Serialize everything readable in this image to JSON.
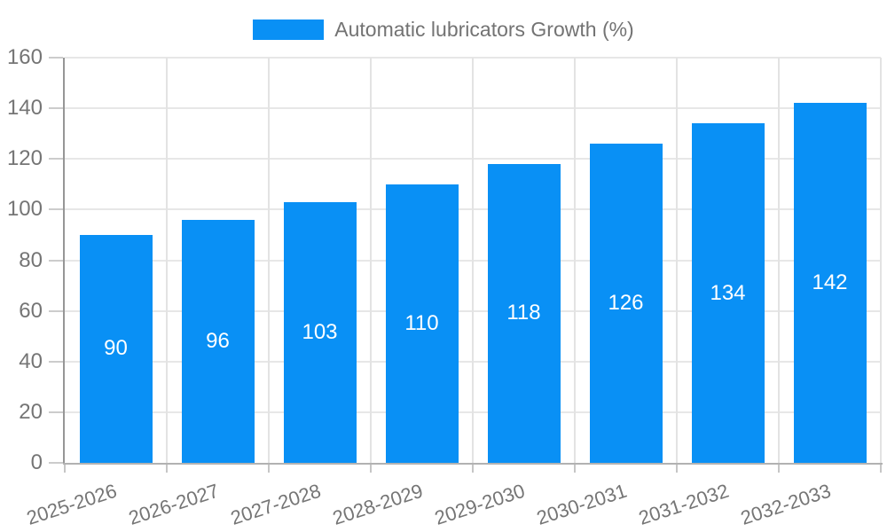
{
  "legend": {
    "label": "Automatic lubricators Growth (%)"
  },
  "chart_data": {
    "type": "bar",
    "title": "",
    "xlabel": "",
    "ylabel": "",
    "series_name": "Automatic lubricators Growth (%)",
    "categories": [
      "2025-2026",
      "2026-2027",
      "2027-2028",
      "2028-2029",
      "2029-2030",
      "2030-2031",
      "2031-2032",
      "2032-2033"
    ],
    "values": [
      90,
      96,
      103,
      110,
      118,
      126,
      134,
      142
    ],
    "ylim": [
      0,
      160
    ],
    "yticks": [
      0,
      20,
      40,
      60,
      80,
      100,
      120,
      140,
      160
    ],
    "grid": true,
    "legend_position": "top-center",
    "value_labels": "inside-center",
    "x_label_rotation_deg": -18
  },
  "colors": {
    "bar": "#0990f5",
    "grid": "#e7e7e7",
    "axis": "#a0a0a0",
    "tick_text": "#757575",
    "value_text": "#ffffff"
  }
}
